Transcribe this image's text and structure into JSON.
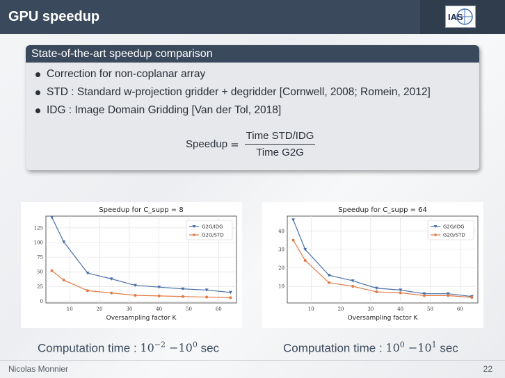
{
  "slide": {
    "title": "GPU speedup",
    "logo_text": "IAS",
    "author": "Nicolas Monnier",
    "page_number": "22"
  },
  "block": {
    "heading": "State-of-the-art speedup comparison",
    "bullets": [
      "Correction for non-coplanar array",
      "STD : Standard w-projection gridder + degridder [Cornwell, 2008; Romein, 2012]",
      "IDG : Image Domain Gridding [Van der Tol, 2018]"
    ],
    "formula": {
      "lhs": "Speedup",
      "equals": "=",
      "numerator": "Time STD/IDG",
      "denominator": "Time G2G"
    }
  },
  "captions": [
    {
      "prefix": "Computation time : ",
      "a_base": "10",
      "a_exp": "−2",
      "dash": " −",
      "b_base": "10",
      "b_exp": "0",
      "unit": " sec"
    },
    {
      "prefix": "Computation time : ",
      "a_base": "10",
      "a_exp": "0",
      "dash": " −",
      "b_base": "10",
      "b_exp": "1",
      "unit": " sec"
    }
  ],
  "colors": {
    "blue": "#4a6fa5",
    "orange": "#e07b46",
    "header": "#3a4a5c"
  },
  "chart_data": [
    {
      "type": "line",
      "title": "Speedup for C_supp = 8",
      "xlabel": "Oversampling factor K",
      "ylabel": "",
      "xlim": [
        2,
        66
      ],
      "ylim": [
        -3,
        145
      ],
      "xticks": [
        10,
        20,
        30,
        40,
        50,
        60
      ],
      "yticks": [
        0,
        25,
        50,
        75,
        100,
        125
      ],
      "grid": true,
      "legend": "top-right",
      "x": [
        4,
        8,
        16,
        24,
        32,
        40,
        48,
        56,
        64
      ],
      "series": [
        {
          "name": "G2G/IDG",
          "color": "#4a6fa5",
          "marker": "triangle-down",
          "values": [
            143,
            101,
            48,
            38,
            27,
            24,
            21,
            19,
            15
          ]
        },
        {
          "name": "G2G/STD",
          "color": "#e07b46",
          "marker": "circle",
          "values": [
            52,
            36,
            18,
            14,
            10,
            9,
            8,
            7,
            6
          ]
        }
      ]
    },
    {
      "type": "line",
      "title": "Speedup for C_supp = 64",
      "xlabel": "Oversampling factor K",
      "ylabel": "",
      "xlim": [
        2,
        66
      ],
      "ylim": [
        1,
        48
      ],
      "xticks": [
        10,
        20,
        30,
        40,
        50,
        60
      ],
      "yticks": [
        10,
        20,
        30,
        40
      ],
      "grid": true,
      "legend": "top-right",
      "x": [
        4,
        8,
        16,
        24,
        32,
        40,
        48,
        56,
        64
      ],
      "series": [
        {
          "name": "G2G/IDG",
          "color": "#4a6fa5",
          "marker": "triangle-down",
          "values": [
            46,
            30,
            16,
            13,
            9,
            8,
            6,
            6,
            4.5
          ]
        },
        {
          "name": "G2G/STD",
          "color": "#e07b46",
          "marker": "circle",
          "values": [
            35,
            24,
            12,
            10,
            7,
            6.5,
            5,
            5,
            4
          ]
        }
      ]
    }
  ]
}
